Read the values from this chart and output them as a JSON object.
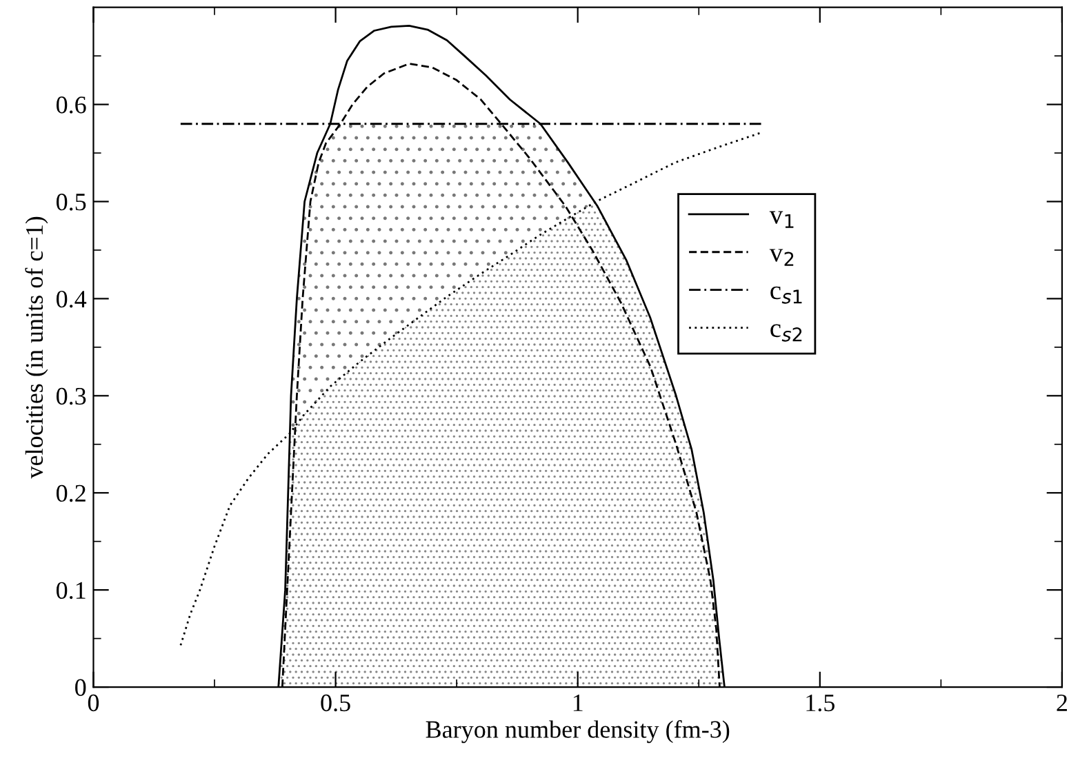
{
  "chart_data": {
    "type": "line",
    "xlabel": "Baryon number density (fm-3)",
    "ylabel": "velocities (in units of c=1)",
    "xlim": [
      0,
      2
    ],
    "ylim": [
      0,
      0.7
    ],
    "xticks": [
      0,
      {
        "value": 0.25,
        "label": null
      },
      0.5,
      {
        "value": 0.75,
        "label": null
      },
      1,
      {
        "value": 1.25,
        "label": null
      },
      1.5,
      {
        "value": 1.75,
        "label": null
      },
      2
    ],
    "yticks": [
      0,
      {
        "value": 0.05,
        "label": null
      },
      0.1,
      {
        "value": 0.15,
        "label": null
      },
      0.2,
      {
        "value": 0.25,
        "label": null
      },
      0.3,
      {
        "value": 0.35,
        "label": null
      },
      0.4,
      {
        "value": 0.45,
        "label": null
      },
      0.5,
      {
        "value": 0.55,
        "label": null
      },
      0.6,
      {
        "value": 0.65,
        "label": null
      }
    ],
    "grid": false,
    "legend": "top right",
    "marker": "none",
    "series": [
      {
        "name": "v$_{1}$",
        "color": "#000000",
        "line_style": "solid",
        "x": [
          0.382,
          0.389,
          0.396,
          0.402,
          0.408,
          0.42,
          0.436,
          0.462,
          0.489,
          0.505,
          0.524,
          0.55,
          0.58,
          0.615,
          0.652,
          0.69,
          0.73,
          0.766,
          0.81,
          0.86,
          0.923,
          0.98,
          1.041,
          1.1,
          1.15,
          1.203,
          1.235,
          1.26,
          1.28,
          1.292,
          1.303
        ],
        "values": [
          0,
          0.05,
          0.1,
          0.2,
          0.3,
          0.4,
          0.5,
          0.55,
          0.58,
          0.615,
          0.645,
          0.665,
          0.676,
          0.68,
          0.681,
          0.677,
          0.666,
          0.65,
          0.63,
          0.605,
          0.58,
          0.54,
          0.495,
          0.44,
          0.38,
          0.3,
          0.245,
          0.18,
          0.11,
          0.05,
          0
        ]
      },
      {
        "name": "v$_{2}$",
        "color": "#000000",
        "line_style": "dashed",
        "x": [
          0.39,
          0.395,
          0.4,
          0.41,
          0.42,
          0.432,
          0.448,
          0.465,
          0.48,
          0.51,
          0.535,
          0.565,
          0.6,
          0.652,
          0.7,
          0.75,
          0.8,
          0.842,
          0.9,
          0.975,
          1.03,
          1.089,
          1.15,
          1.203,
          1.245,
          1.274,
          1.286,
          1.293
        ],
        "values": [
          0,
          0.05,
          0.1,
          0.2,
          0.3,
          0.4,
          0.5,
          0.54,
          0.56,
          0.58,
          0.6,
          0.618,
          0.632,
          0.642,
          0.638,
          0.625,
          0.605,
          0.58,
          0.545,
          0.495,
          0.45,
          0.396,
          0.33,
          0.25,
          0.18,
          0.11,
          0.06,
          0
        ]
      },
      {
        "name": "c$_{s1}$",
        "color": "#000000",
        "line_style": "dashdot",
        "x": [
          0.18,
          1.379
        ],
        "values": [
          0.58,
          0.58
        ]
      },
      {
        "name": "c$_{s2}$",
        "color": "#000000",
        "line_style": "dotted",
        "x": [
          0.18,
          0.2,
          0.22,
          0.25,
          0.282,
          0.32,
          0.36,
          0.405,
          0.434,
          0.49,
          0.55,
          0.61,
          0.67,
          0.73,
          0.795,
          0.86,
          0.92,
          0.98,
          1.042,
          1.12,
          1.2,
          1.29,
          1.379
        ],
        "values": [
          0.043,
          0.075,
          0.1,
          0.145,
          0.187,
          0.215,
          0.24,
          0.261,
          0.28,
          0.31,
          0.335,
          0.358,
          0.38,
          0.402,
          0.424,
          0.445,
          0.465,
          0.483,
          0.501,
          0.52,
          0.54,
          0.556,
          0.571
        ]
      }
    ]
  }
}
